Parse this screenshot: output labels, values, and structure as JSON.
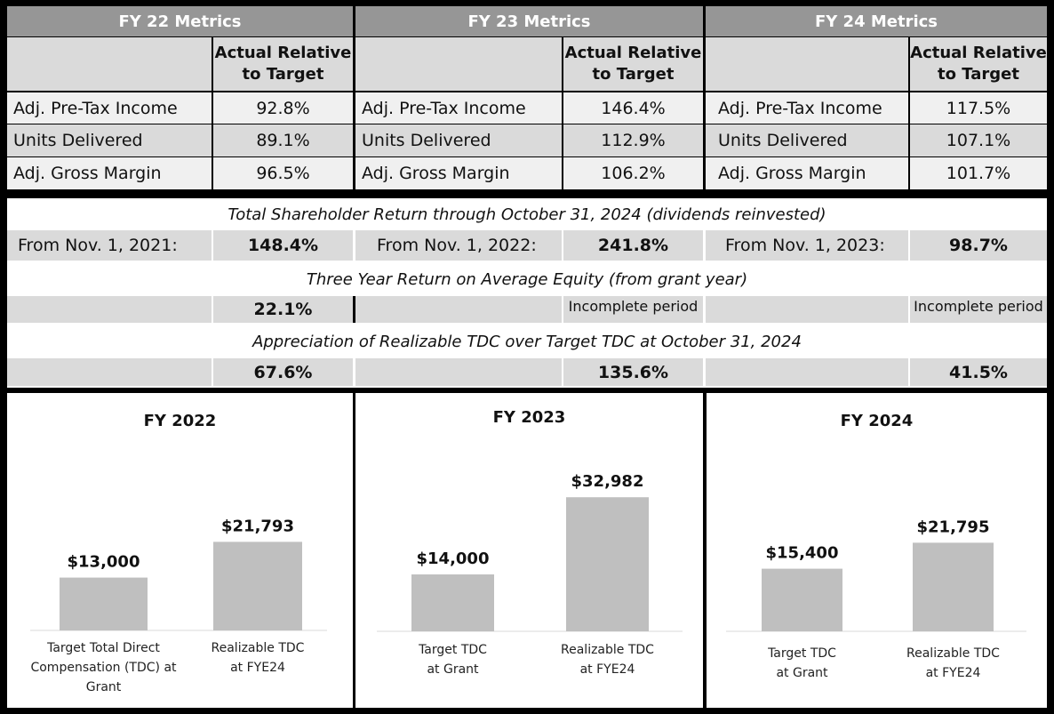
{
  "metrics": {
    "column_header": "Actual Relative to Target",
    "years": [
      {
        "header": "FY 22 Metrics",
        "rows": [
          {
            "label": "Adj. Pre-Tax Income",
            "value": "92.8%"
          },
          {
            "label": "Units Delivered",
            "value": "89.1%"
          },
          {
            "label": "Adj. Gross Margin",
            "value": "96.5%"
          }
        ]
      },
      {
        "header": "FY 23 Metrics",
        "rows": [
          {
            "label": "Adj. Pre-Tax Income",
            "value": "146.4%"
          },
          {
            "label": "Units Delivered",
            "value": "112.9%"
          },
          {
            "label": "Adj. Gross Margin",
            "value": "106.2%"
          }
        ]
      },
      {
        "header": "FY 24 Metrics",
        "rows": [
          {
            "label": "Adj. Pre-Tax Income",
            "value": "117.5%"
          },
          {
            "label": "Units Delivered",
            "value": "107.1%"
          },
          {
            "label": "Adj. Gross Margin",
            "value": "101.7%"
          }
        ]
      }
    ]
  },
  "tsr": {
    "title": "Total Shareholder Return through October 31, 2024 (dividends reinvested)",
    "items": [
      {
        "label": "From Nov. 1, 2021:",
        "value": "148.4%"
      },
      {
        "label": "From Nov. 1, 2022:",
        "value": "241.8%"
      },
      {
        "label": "From Nov. 1, 2023:",
        "value": "98.7%"
      }
    ]
  },
  "roe": {
    "title": "Three Year Return on Average Equity (from grant year)",
    "values": [
      "22.1%",
      "Incomplete period",
      "Incomplete period"
    ]
  },
  "tdc": {
    "title": "Appreciation of Realizable TDC over Target TDC at October 31, 2024",
    "values": [
      "67.6%",
      "135.6%",
      "41.5%"
    ]
  },
  "chart_data": [
    {
      "type": "bar",
      "title": "FY 2022",
      "categories": [
        "Target Total Direct Compensation (TDC) at Grant",
        "Realizable TDC at FYE24"
      ],
      "category_lines": [
        [
          "Target Total Direct",
          "Compensation (TDC) at",
          "Grant"
        ],
        [
          "Realizable TDC",
          "at FYE24"
        ]
      ],
      "values": [
        13000,
        21793
      ],
      "labels": [
        "$13,000",
        "$21,793"
      ],
      "ylim": [
        0,
        35000
      ]
    },
    {
      "type": "bar",
      "title": "FY 2023",
      "categories": [
        "Target TDC at Grant",
        "Realizable TDC at FYE24"
      ],
      "category_lines": [
        [
          "Target  TDC",
          "at Grant"
        ],
        [
          "Realizable TDC",
          "at FYE24"
        ]
      ],
      "values": [
        14000,
        32982
      ],
      "labels": [
        "$14,000",
        "$32,982"
      ],
      "ylim": [
        0,
        35000
      ]
    },
    {
      "type": "bar",
      "title": "FY 2024",
      "categories": [
        "Target TDC at Grant",
        "Realizable TDC at FYE24"
      ],
      "category_lines": [
        [
          "Target  TDC",
          "at Grant"
        ],
        [
          "Realizable TDC",
          "at FYE24"
        ]
      ],
      "values": [
        15400,
        21795
      ],
      "labels": [
        "$15,400",
        "$21,795"
      ],
      "ylim": [
        0,
        35000
      ]
    }
  ]
}
